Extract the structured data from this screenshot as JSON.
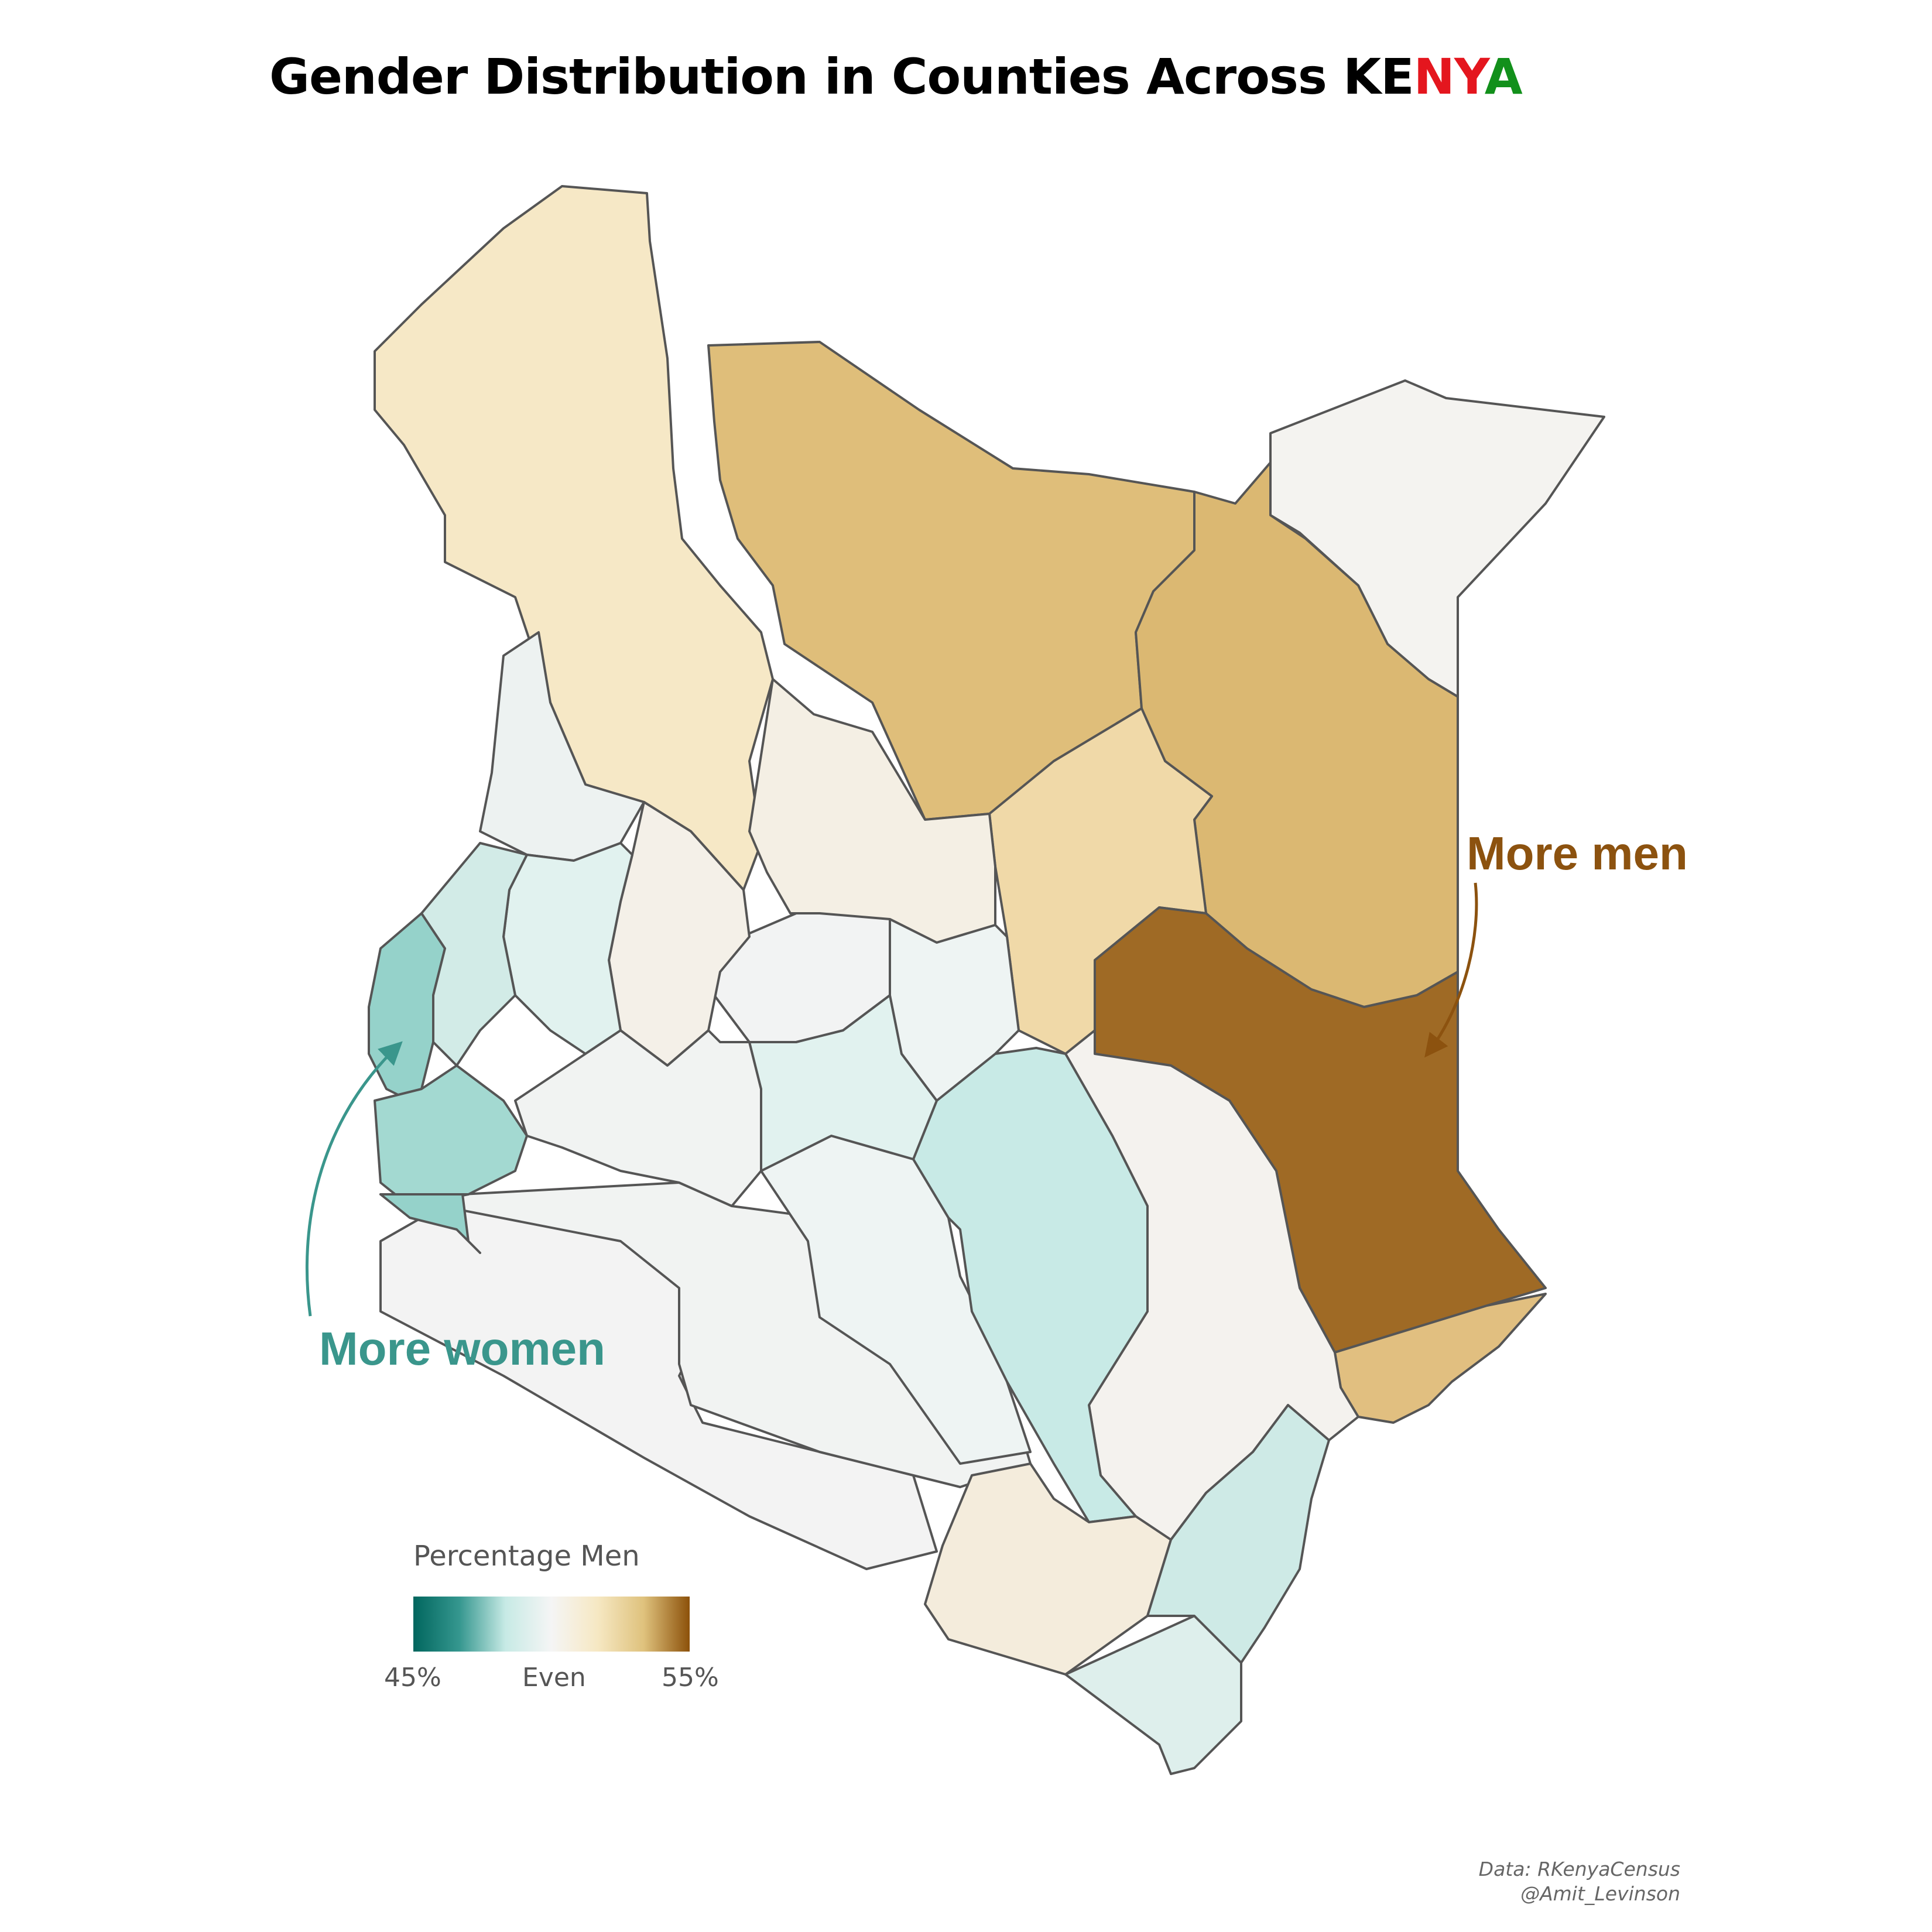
{
  "title": {
    "prefix": "Gender Distribution in Counties Across ",
    "country_letters": [
      "KE",
      "N",
      "Y",
      "A"
    ],
    "letter_colors": [
      "#000000",
      "#e4161e",
      "#e4161e",
      "#12901b"
    ]
  },
  "legend": {
    "title": "Percentage Men",
    "min_label": "45%",
    "mid_label": "Even",
    "max_label": "55%",
    "scale_min": 45,
    "scale_max": 55,
    "colors": [
      "#01665e",
      "#35978f",
      "#c7eae5",
      "#f5f5f5",
      "#f6e8c3",
      "#dfc27d",
      "#8c510a"
    ]
  },
  "annotations": {
    "more_men": "More men",
    "more_women": "More women",
    "men_color": "#8c520f",
    "women_color": "#3a968c"
  },
  "caption": {
    "line1": "Data: RKenyaCensus",
    "line2": "@Amit_Levinson"
  },
  "map": {
    "outline_color": "#555555",
    "region_fill_levels": {
      "turkana": "#f6e8c6",
      "marsabit": "#dfbe7a",
      "mandera": "#f4f3f0",
      "wajir": "#dbb872",
      "isiolo": "#f0d9a8",
      "garissa": "#9f6a25",
      "tana_river": "#f4f2ee",
      "lamu": "#e1bf80",
      "samburu": "#f4efe4",
      "kilifi": "#f4ecdc",
      "kwale": "#deefec",
      "taita_taveta": "#ceeae6",
      "kitui": "#c8eae6",
      "west_pokot": "#edf2f1",
      "baringo": "#f4f0e8",
      "busia_region": "#95d2ca",
      "kakamega_region": "#d2ebe7",
      "kisii_region": "#a3d9d1",
      "central_highlands": "#e1f2ef",
      "kajiado": "#f3f3f3",
      "narok": "#f1f3f2",
      "machakos": "#eef4f3",
      "laikipia": "#f2f3f3"
    }
  }
}
